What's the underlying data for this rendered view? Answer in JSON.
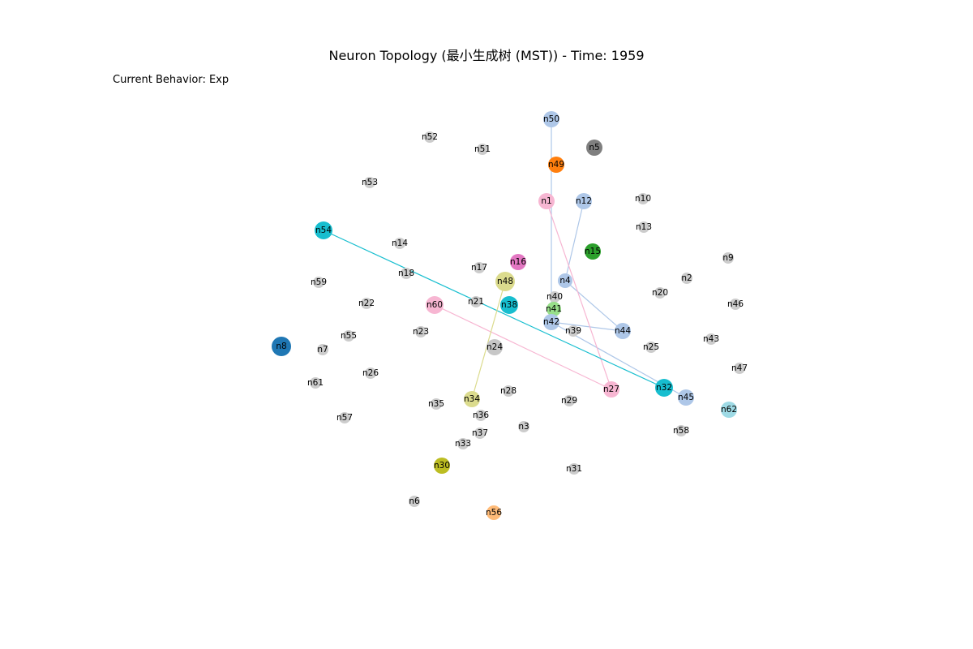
{
  "title": "Neuron Topology (最小生成树 (MST)) - Time: 1959",
  "behavior": "Current Behavior: Exp",
  "colors": {
    "inactive": "#cccccc",
    "n1": "#f7b6d2",
    "n4": "#aec7e8",
    "n5": "#7f7f7f",
    "n8": "#1f77b4",
    "n12": "#aec7e8",
    "n15": "#2ca02c",
    "n16": "#e377c2",
    "n24": "#c7c7c7",
    "n27": "#f7b6d2",
    "n30": "#bcbd22",
    "n32": "#17becf",
    "n34": "#dbdb8d",
    "n38": "#17becf",
    "n41": "#98df8a",
    "n42": "#aec7e8",
    "n44": "#aec7e8",
    "n45": "#aec7e8",
    "n48": "#dbdb8d",
    "n49": "#ff7f0e",
    "n50": "#aec7e8",
    "n54": "#17becf",
    "n56": "#ffbb78",
    "n60": "#f7b6d2",
    "n62": "#9edae5"
  },
  "nodes": [
    {
      "id": "n1",
      "label": "n1"
    },
    {
      "id": "n2",
      "label": "n2"
    },
    {
      "id": "n3",
      "label": "n3"
    },
    {
      "id": "n4",
      "label": "n4"
    },
    {
      "id": "n5",
      "label": "n5"
    },
    {
      "id": "n6",
      "label": "n6"
    },
    {
      "id": "n7",
      "label": "n7"
    },
    {
      "id": "n8",
      "label": "n8"
    },
    {
      "id": "n9",
      "label": "n9"
    },
    {
      "id": "n10",
      "label": "n10"
    },
    {
      "id": "n12",
      "label": "n12"
    },
    {
      "id": "n13",
      "label": "n13"
    },
    {
      "id": "n14",
      "label": "n14"
    },
    {
      "id": "n15",
      "label": "n15"
    },
    {
      "id": "n16",
      "label": "n16"
    },
    {
      "id": "n17",
      "label": "n17"
    },
    {
      "id": "n18",
      "label": "n18"
    },
    {
      "id": "n20",
      "label": "n20"
    },
    {
      "id": "n21",
      "label": "n21"
    },
    {
      "id": "n22",
      "label": "n22"
    },
    {
      "id": "n23",
      "label": "n23"
    },
    {
      "id": "n24",
      "label": "n24"
    },
    {
      "id": "n25",
      "label": "n25"
    },
    {
      "id": "n26",
      "label": "n26"
    },
    {
      "id": "n27",
      "label": "n27"
    },
    {
      "id": "n28",
      "label": "n28"
    },
    {
      "id": "n29",
      "label": "n29"
    },
    {
      "id": "n30",
      "label": "n30"
    },
    {
      "id": "n31",
      "label": "n31"
    },
    {
      "id": "n32",
      "label": "n32"
    },
    {
      "id": "n33",
      "label": "n33"
    },
    {
      "id": "n34",
      "label": "n34"
    },
    {
      "id": "n35",
      "label": "n35"
    },
    {
      "id": "n36",
      "label": "n36"
    },
    {
      "id": "n37",
      "label": "n37"
    },
    {
      "id": "n38",
      "label": "n38"
    },
    {
      "id": "n39",
      "label": "n39"
    },
    {
      "id": "n40",
      "label": "n40"
    },
    {
      "id": "n41",
      "label": "n41"
    },
    {
      "id": "n42",
      "label": "n42"
    },
    {
      "id": "n43",
      "label": "n43"
    },
    {
      "id": "n44",
      "label": "n44"
    },
    {
      "id": "n45",
      "label": "n45"
    },
    {
      "id": "n46",
      "label": "n46"
    },
    {
      "id": "n47",
      "label": "n47"
    },
    {
      "id": "n48",
      "label": "n48"
    },
    {
      "id": "n49",
      "label": "n49"
    },
    {
      "id": "n50",
      "label": "n50"
    },
    {
      "id": "n51",
      "label": "n51"
    },
    {
      "id": "n52",
      "label": "n52"
    },
    {
      "id": "n53",
      "label": "n53"
    },
    {
      "id": "n54",
      "label": "n54"
    },
    {
      "id": "n55",
      "label": "n55"
    },
    {
      "id": "n56",
      "label": "n56"
    },
    {
      "id": "n57",
      "label": "n57"
    },
    {
      "id": "n58",
      "label": "n58"
    },
    {
      "id": "n59",
      "label": "n59"
    },
    {
      "id": "n60",
      "label": "n60"
    },
    {
      "id": "n61",
      "label": "n61"
    },
    {
      "id": "n62",
      "label": "n62"
    }
  ],
  "edges": [
    {
      "from": "n50",
      "to": "n42",
      "color": "#aec7e8"
    },
    {
      "from": "n12",
      "to": "n4",
      "color": "#aec7e8"
    },
    {
      "from": "n4",
      "to": "n44",
      "color": "#aec7e8"
    },
    {
      "from": "n42",
      "to": "n44",
      "color": "#aec7e8"
    },
    {
      "from": "n42",
      "to": "n45",
      "color": "#aec7e8"
    },
    {
      "from": "n1",
      "to": "n27",
      "color": "#f7b6d2"
    },
    {
      "from": "n60",
      "to": "n27",
      "color": "#f7b6d2"
    },
    {
      "from": "n54",
      "to": "n32",
      "color": "#17becf"
    },
    {
      "from": "n48",
      "to": "n34",
      "color": "#dbdb8d"
    }
  ]
}
